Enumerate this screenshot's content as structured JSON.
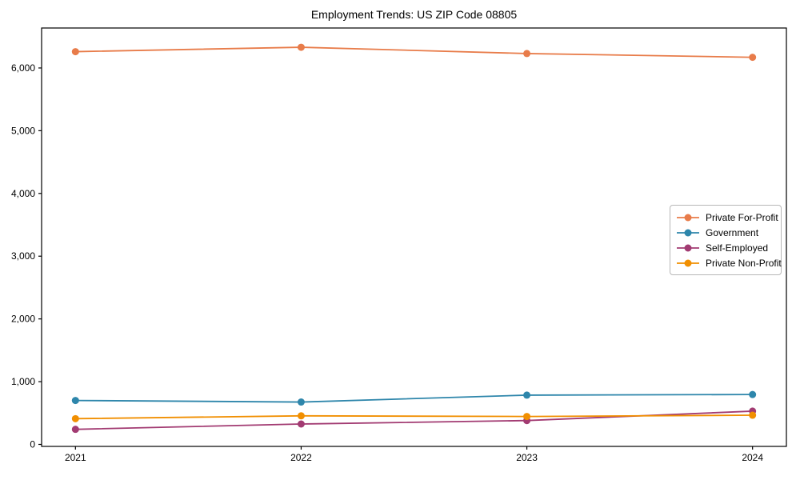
{
  "chart_data": {
    "type": "line",
    "title": "Employment Trends: US ZIP Code 08805",
    "x": [
      "2021",
      "2022",
      "2023",
      "2024"
    ],
    "series": [
      {
        "name": "Private For-Profit",
        "color": "#e87c4a",
        "values": [
          6260,
          6330,
          6230,
          6170
        ]
      },
      {
        "name": "Government",
        "color": "#2e86ab",
        "values": [
          700,
          675,
          785,
          795
        ]
      },
      {
        "name": "Self-Employed",
        "color": "#a23b72",
        "values": [
          240,
          325,
          380,
          530
        ]
      },
      {
        "name": "Private Non-Profit",
        "color": "#f18f01",
        "values": [
          410,
          455,
          445,
          465
        ]
      }
    ],
    "xlabel": "",
    "ylabel": "",
    "yticks": [
      0,
      1000,
      2000,
      3000,
      4000,
      5000,
      6000
    ],
    "ytick_labels": [
      "0",
      "1,000",
      "2,000",
      "3,000",
      "4,000",
      "5,000",
      "6,000"
    ],
    "xlim": [
      -0.15,
      3.15
    ],
    "ylim": [
      -32,
      6637
    ],
    "grid": false,
    "legend_position": "center-right",
    "axis_color": "#000000",
    "background": "#ffffff"
  }
}
